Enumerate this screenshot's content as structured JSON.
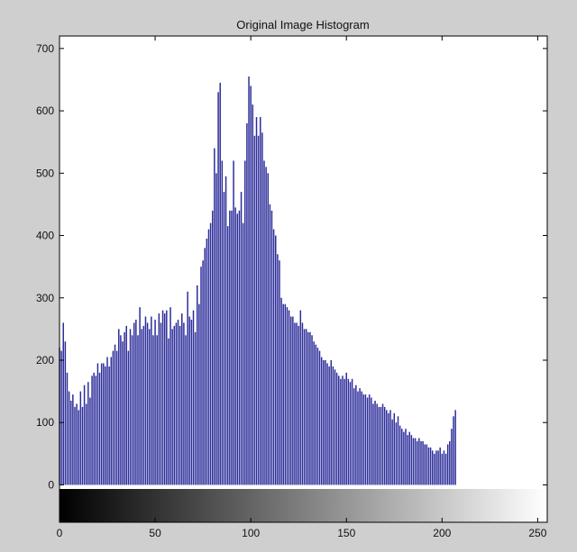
{
  "chart_data": {
    "type": "bar",
    "title": "Original Image Histogram",
    "xlim": [
      0,
      255
    ],
    "ylim": [
      -60,
      720
    ],
    "xticks": [
      0,
      50,
      100,
      150,
      200,
      250
    ],
    "yticks": [
      0,
      100,
      200,
      300,
      400,
      500,
      600,
      700
    ],
    "grid": false,
    "legend": "none",
    "bar_color": "#2b2b9a",
    "colorbar": {
      "type": "grayscale-gradient",
      "range": [
        0,
        255
      ],
      "position": "below-axis"
    },
    "series": [
      {
        "values": [
          220,
          215,
          260,
          230,
          180,
          150,
          135,
          145,
          125,
          130,
          120,
          150,
          125,
          160,
          130,
          165,
          140,
          175,
          180,
          175,
          195,
          180,
          195,
          195,
          190,
          205,
          190,
          205,
          215,
          225,
          215,
          250,
          240,
          230,
          245,
          255,
          215,
          250,
          240,
          260,
          265,
          240,
          285,
          250,
          255,
          270,
          260,
          250,
          270,
          240,
          265,
          240,
          275,
          260,
          280,
          275,
          280,
          235,
          285,
          250,
          255,
          260,
          265,
          255,
          275,
          260,
          240,
          310,
          270,
          265,
          280,
          245,
          320,
          290,
          350,
          360,
          380,
          395,
          410,
          420,
          440,
          540,
          500,
          630,
          645,
          520,
          470,
          495,
          415,
          440,
          440,
          520,
          445,
          435,
          440,
          470,
          420,
          520,
          580,
          655,
          640,
          610,
          560,
          590,
          560,
          590,
          565,
          520,
          510,
          500,
          450,
          440,
          410,
          400,
          370,
          360,
          300,
          290,
          290,
          285,
          280,
          270,
          270,
          260,
          260,
          255,
          280,
          260,
          250,
          250,
          245,
          245,
          240,
          230,
          225,
          220,
          215,
          205,
          200,
          200,
          195,
          190,
          200,
          190,
          185,
          180,
          175,
          170,
          175,
          170,
          180,
          170,
          165,
          170,
          155,
          160,
          150,
          155,
          150,
          145,
          145,
          140,
          145,
          140,
          130,
          135,
          130,
          125,
          125,
          130,
          125,
          120,
          115,
          120,
          105,
          115,
          100,
          110,
          95,
          90,
          85,
          90,
          80,
          85,
          80,
          75,
          75,
          70,
          75,
          70,
          70,
          65,
          65,
          60,
          60,
          55,
          50,
          55,
          55,
          60,
          50,
          55,
          50,
          65,
          70,
          90,
          110,
          120
        ]
      }
    ]
  }
}
